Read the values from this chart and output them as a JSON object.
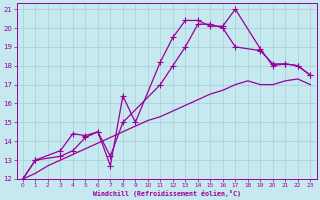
{
  "xlabel": "Windchill (Refroidissement éolien,°C)",
  "background_color": "#c6e8ef",
  "grid_color": "#a8cdd8",
  "line_color": "#990099",
  "xlim": [
    -0.5,
    23.5
  ],
  "ylim": [
    12,
    21.3
  ],
  "xticks": [
    0,
    1,
    2,
    3,
    4,
    5,
    6,
    7,
    8,
    9,
    10,
    11,
    12,
    13,
    14,
    15,
    16,
    17,
    18,
    19,
    20,
    21,
    22,
    23
  ],
  "yticks": [
    12,
    13,
    14,
    15,
    16,
    17,
    18,
    19,
    20,
    21
  ],
  "line1_x": [
    0,
    1,
    2,
    3,
    4,
    5,
    6,
    7,
    8,
    9,
    10,
    11,
    12,
    13,
    14,
    15,
    16,
    17,
    18,
    19,
    20,
    21,
    22,
    23
  ],
  "line1_y": [
    12.0,
    12.3,
    12.7,
    13.0,
    13.3,
    13.6,
    13.9,
    14.2,
    14.5,
    14.8,
    15.1,
    15.3,
    15.6,
    15.9,
    16.2,
    16.5,
    16.7,
    17.0,
    17.2,
    17.0,
    17.0,
    17.2,
    17.3,
    17.0
  ],
  "line2_x": [
    0,
    1,
    3,
    4,
    5,
    6,
    7,
    8,
    9,
    11,
    12,
    13,
    14,
    15,
    16,
    17,
    19,
    20,
    21,
    22,
    23
  ],
  "line2_y": [
    12.0,
    13.0,
    13.2,
    13.5,
    14.2,
    14.5,
    12.7,
    16.4,
    15.0,
    18.2,
    19.5,
    20.4,
    20.4,
    20.1,
    20.1,
    21.0,
    18.9,
    18.0,
    18.1,
    18.0,
    17.5
  ],
  "line3_x": [
    0,
    1,
    3,
    4,
    5,
    6,
    7,
    8,
    11,
    12,
    13,
    14,
    15,
    16,
    17,
    19,
    20,
    21,
    22,
    23
  ],
  "line3_y": [
    12.0,
    13.0,
    13.5,
    14.4,
    14.3,
    14.5,
    13.2,
    15.0,
    17.0,
    18.0,
    19.0,
    20.2,
    20.2,
    20.0,
    19.0,
    18.8,
    18.1,
    18.1,
    18.0,
    17.5
  ]
}
